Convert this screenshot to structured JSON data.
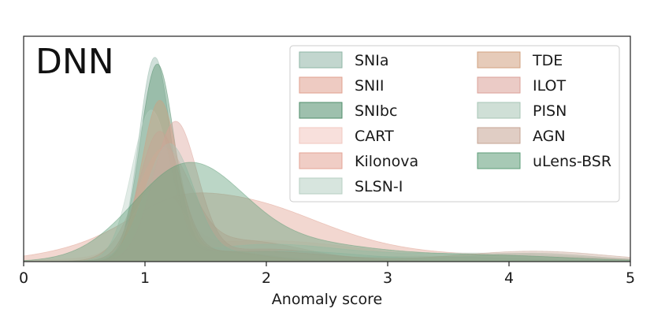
{
  "chart_data": {
    "type": "area",
    "title": "DNN",
    "xlabel": "Anomaly score",
    "ylabel": "",
    "xlim": [
      0,
      5
    ],
    "xticks": [
      "0",
      "1",
      "2",
      "3",
      "4",
      "5"
    ],
    "ylim": [
      0,
      1.0
    ],
    "grid": false,
    "legend_position": "top-right",
    "legend_columns": 2,
    "series": [
      {
        "name": "SNIa",
        "color": "#8fb5a6",
        "hatch": "dots",
        "components": [
          {
            "mu": 1.08,
            "sigma": 0.13,
            "w": 0.95
          },
          {
            "mu": 1.5,
            "sigma": 0.35,
            "w": 0.05
          },
          {
            "mu": 3.2,
            "sigma": 0.8,
            "w": 0.025
          }
        ]
      },
      {
        "name": "SNII",
        "color": "#e0a08f",
        "hatch": "none",
        "components": [
          {
            "mu": 1.65,
            "sigma": 0.75,
            "w": 0.3
          },
          {
            "mu": 1.2,
            "sigma": 0.3,
            "w": 0.05
          },
          {
            "mu": 3.6,
            "sigma": 1.0,
            "w": 0.03
          }
        ]
      },
      {
        "name": "SNIbc",
        "color": "#4f8c6a",
        "hatch": "dots",
        "components": [
          {
            "mu": 1.1,
            "sigma": 0.14,
            "w": 0.92
          },
          {
            "mu": 1.6,
            "sigma": 0.4,
            "w": 0.05
          }
        ]
      },
      {
        "name": "CART",
        "color": "#f2c7bf",
        "hatch": "dots",
        "components": [
          {
            "mu": 1.1,
            "sigma": 0.2,
            "w": 0.3
          },
          {
            "mu": 2.0,
            "sigma": 0.8,
            "w": 0.1
          }
        ]
      },
      {
        "name": "Kilonova",
        "color": "#e3a495",
        "hatch": "none",
        "components": [
          {
            "mu": 1.15,
            "sigma": 0.22,
            "w": 0.5
          },
          {
            "mu": 1.8,
            "sigma": 0.5,
            "w": 0.1
          }
        ]
      },
      {
        "name": "SLSN-I",
        "color": "#b7cfc3",
        "hatch": "dots",
        "components": [
          {
            "mu": 1.05,
            "sigma": 0.16,
            "w": 0.7
          },
          {
            "mu": 2.0,
            "sigma": 0.6,
            "w": 0.08
          },
          {
            "mu": 3.8,
            "sigma": 0.8,
            "w": 0.04
          }
        ]
      },
      {
        "name": "TDE",
        "color": "#d1a07f",
        "hatch": "dense-dots",
        "components": [
          {
            "mu": 1.12,
            "sigma": 0.15,
            "w": 0.75
          },
          {
            "mu": 1.6,
            "sigma": 0.35,
            "w": 0.05
          }
        ]
      },
      {
        "name": "ILOT",
        "color": "#dba198",
        "hatch": "dots",
        "components": [
          {
            "mu": 1.25,
            "sigma": 0.18,
            "w": 0.65
          },
          {
            "mu": 2.0,
            "sigma": 0.5,
            "w": 0.06
          }
        ]
      },
      {
        "name": "PISN",
        "color": "#a7c4b5",
        "hatch": "dots",
        "components": [
          {
            "mu": 1.2,
            "sigma": 0.2,
            "w": 0.55
          },
          {
            "mu": 2.2,
            "sigma": 0.6,
            "w": 0.05
          },
          {
            "mu": 4.2,
            "sigma": 0.5,
            "w": 0.04
          }
        ]
      },
      {
        "name": "AGN",
        "color": "#c6a493",
        "hatch": "dots",
        "components": [
          {
            "mu": 1.12,
            "sigma": 0.17,
            "w": 0.6
          },
          {
            "mu": 1.9,
            "sigma": 0.6,
            "w": 0.05
          },
          {
            "mu": 4.2,
            "sigma": 0.6,
            "w": 0.05
          }
        ]
      },
      {
        "name": "uLens-BSR",
        "color": "#5e9d78",
        "hatch": "dots",
        "components": [
          {
            "mu": 1.35,
            "sigma": 0.45,
            "w": 0.45
          },
          {
            "mu": 2.3,
            "sigma": 0.6,
            "w": 0.08
          },
          {
            "mu": 3.8,
            "sigma": 0.7,
            "w": 0.03
          }
        ]
      }
    ]
  }
}
